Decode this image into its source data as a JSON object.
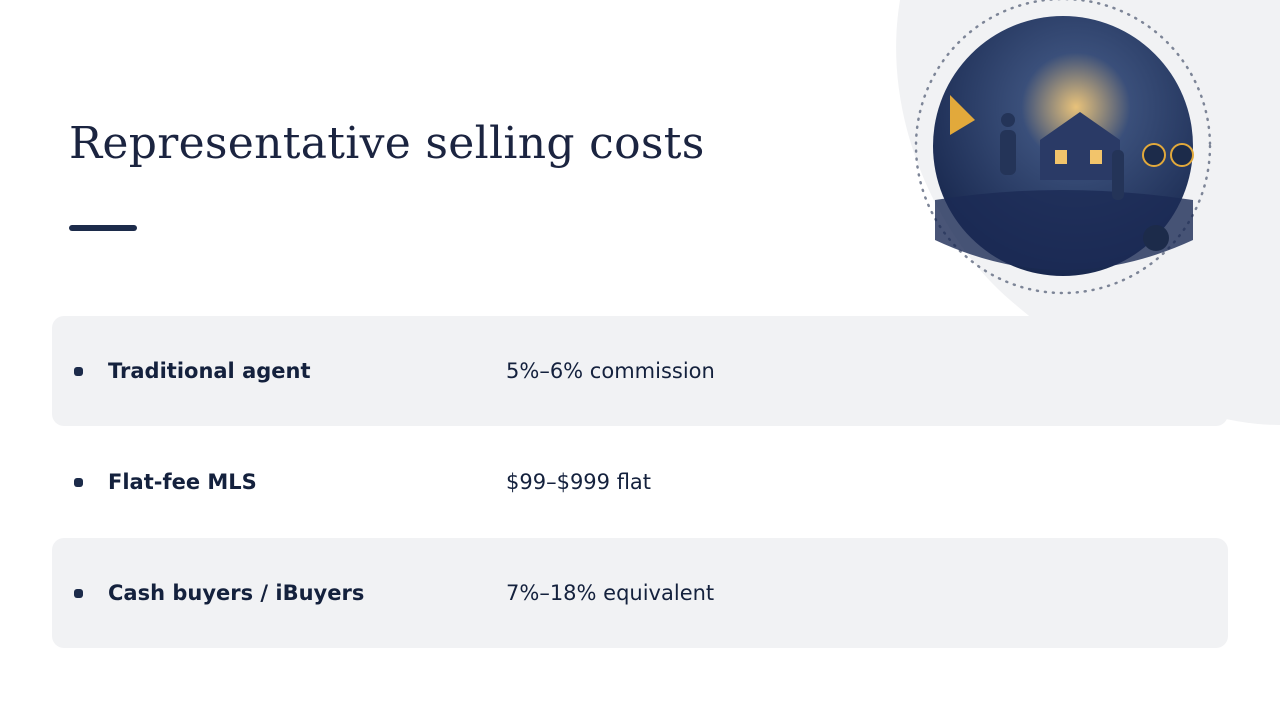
{
  "header": {
    "title": "Representative selling costs"
  },
  "rows": [
    {
      "label": "Traditional agent",
      "value": "5%–6% commission"
    },
    {
      "label": "Flat-fee MLS",
      "value": "$99–$999 flat"
    },
    {
      "label": "Cash buyers / iBuyers",
      "value": "7%–18% equivalent"
    }
  ]
}
